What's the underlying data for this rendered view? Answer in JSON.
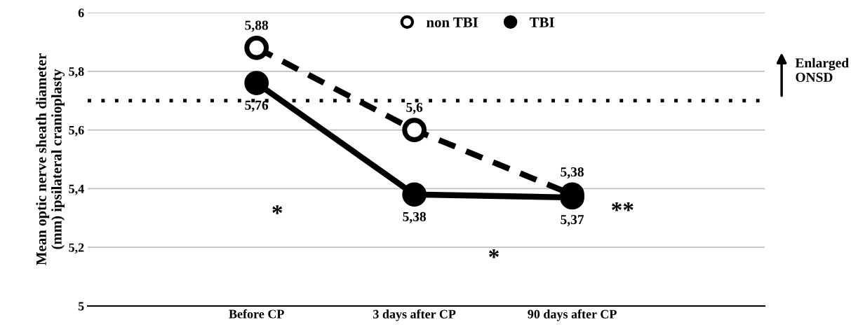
{
  "chart_data": {
    "type": "line",
    "ylabel": "Mean optic nerve sheath diameter\n(mm) ipsilateral cranioplasty",
    "categories": [
      "Before CP",
      "3 days after CP",
      "90 days after CP"
    ],
    "series": [
      {
        "name": "non TBI",
        "color": "#000000",
        "values": [
          5.88,
          5.6,
          5.38
        ],
        "value_labels": [
          "5,88",
          "5,6",
          "5,38"
        ],
        "line_style": "dashed",
        "marker": "circle"
      },
      {
        "name": "TBI",
        "color": "#000000",
        "values": [
          5.76,
          5.38,
          5.37
        ],
        "value_labels": [
          "5,76",
          "5,38",
          "5,37"
        ],
        "line_style": "solid",
        "marker": "circle"
      }
    ],
    "ylim": [
      5,
      6
    ],
    "yticks": [
      {
        "value": 5,
        "label": "5"
      },
      {
        "value": 5.2,
        "label": "5,2"
      },
      {
        "value": 5.4,
        "label": "5,4"
      },
      {
        "value": 5.6,
        "label": "5,6"
      },
      {
        "value": 5.8,
        "label": "5,8"
      },
      {
        "value": 6,
        "label": "6"
      }
    ],
    "grid": "y",
    "legend": "top",
    "ref_lines": [
      {
        "axis": "y",
        "value": 5.7,
        "label": "Enlarged\nONSD",
        "line_style": "dotted",
        "color": "#000000"
      }
    ],
    "annotations": [
      "*",
      "*",
      "**"
    ]
  }
}
